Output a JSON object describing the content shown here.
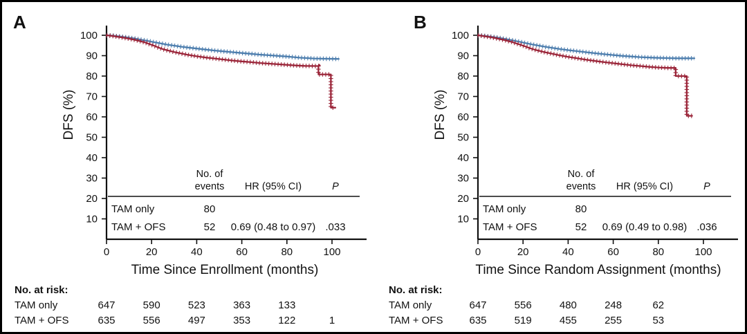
{
  "figure": {
    "background": "#ffffff",
    "border_color": "#000000"
  },
  "colors": {
    "tam_only": "#9A2438",
    "tam_ofs": "#4C7DAD",
    "axis": "#111111"
  },
  "chart_data": [
    {
      "type": "line",
      "panel": "A",
      "ylabel": "DFS (%)",
      "xlabel": "Time Since Enrollment (months)",
      "xlim": [
        0,
        113
      ],
      "ylim": [
        0,
        105
      ],
      "x_ticks": [
        0,
        20,
        40,
        60,
        80,
        100
      ],
      "y_ticks": [
        100,
        90,
        80,
        70,
        60,
        50,
        40,
        30,
        20,
        10
      ],
      "grid": false,
      "legend_position": "none",
      "series": [
        {
          "name": "TAM only",
          "color_key": "tam_only",
          "points": [
            [
              0,
              100
            ],
            [
              3,
              99.6
            ],
            [
              6,
              99.1
            ],
            [
              9,
              98.5
            ],
            [
              12,
              97.9
            ],
            [
              15,
              97.1
            ],
            [
              17,
              96.5
            ],
            [
              19,
              95.7
            ],
            [
              21,
              94.9
            ],
            [
              23,
              94.0
            ],
            [
              25,
              93.2
            ],
            [
              27,
              92.6
            ],
            [
              30,
              91.8
            ],
            [
              33,
              91.1
            ],
            [
              36,
              90.4
            ],
            [
              40,
              89.7
            ],
            [
              44,
              89.1
            ],
            [
              48,
              88.6
            ],
            [
              52,
              88.1
            ],
            [
              56,
              87.6
            ],
            [
              60,
              87.2
            ],
            [
              64,
              86.8
            ],
            [
              68,
              86.4
            ],
            [
              72,
              86.1
            ],
            [
              76,
              85.8
            ],
            [
              80,
              85.5
            ],
            [
              84,
              85.2
            ],
            [
              88,
              85.0
            ],
            [
              94,
              84.9
            ],
            [
              94,
              80.8
            ],
            [
              99.5,
              80.8
            ],
            [
              99.5,
              64.5
            ],
            [
              101.5,
              64.5
            ]
          ]
        },
        {
          "name": "TAM + OFS",
          "color_key": "tam_ofs",
          "points": [
            [
              0,
              100
            ],
            [
              3,
              99.8
            ],
            [
              6,
              99.4
            ],
            [
              9,
              99.0
            ],
            [
              12,
              98.5
            ],
            [
              15,
              97.9
            ],
            [
              18,
              97.3
            ],
            [
              21,
              96.6
            ],
            [
              24,
              96.0
            ],
            [
              27,
              95.4
            ],
            [
              30,
              94.9
            ],
            [
              33,
              94.4
            ],
            [
              36,
              94.0
            ],
            [
              40,
              93.5
            ],
            [
              44,
              93.0
            ],
            [
              48,
              92.5
            ],
            [
              52,
              92.1
            ],
            [
              56,
              91.7
            ],
            [
              60,
              91.3
            ],
            [
              64,
              90.9
            ],
            [
              68,
              90.5
            ],
            [
              72,
              90.2
            ],
            [
              76,
              89.9
            ],
            [
              80,
              89.6
            ],
            [
              83,
              89.3
            ],
            [
              86,
              89.0
            ],
            [
              89,
              88.8
            ],
            [
              92,
              88.6
            ],
            [
              96,
              88.5
            ],
            [
              103,
              88.4
            ]
          ]
        }
      ],
      "stats_table": {
        "header_events_line1": "No. of",
        "header_events_line2": "events",
        "header_hr": "HR (95% CI)",
        "header_p": "P",
        "rows": [
          {
            "label": "TAM only",
            "events": "80",
            "hr": "",
            "p": ""
          },
          {
            "label": "TAM + OFS",
            "events": "52",
            "hr": "0.69 (0.48 to 0.97)",
            "p": ".033"
          }
        ]
      },
      "at_risk": {
        "title": "No. at risk:",
        "rows": [
          {
            "label": "TAM only",
            "counts": [
              647,
              590,
              523,
              363,
              133
            ]
          },
          {
            "label": "TAM + OFS",
            "counts": [
              635,
              556,
              497,
              353,
              122,
              1
            ]
          }
        ]
      }
    },
    {
      "type": "line",
      "panel": "B",
      "ylabel": "DFS (%)",
      "xlabel": "Time Since Random Assignment (months)",
      "xlim": [
        0,
        113
      ],
      "ylim": [
        0,
        105
      ],
      "x_ticks": [
        0,
        20,
        40,
        60,
        80,
        100
      ],
      "y_ticks": [
        100,
        90,
        80,
        70,
        60,
        50,
        40,
        30,
        20,
        10
      ],
      "grid": false,
      "legend_position": "none",
      "series": [
        {
          "name": "TAM only",
          "color_key": "tam_only",
          "points": [
            [
              0,
              100
            ],
            [
              3,
              99.5
            ],
            [
              6,
              99.0
            ],
            [
              9,
              98.3
            ],
            [
              12,
              97.6
            ],
            [
              15,
              96.7
            ],
            [
              17,
              96.0
            ],
            [
              19,
              95.3
            ],
            [
              21,
              94.5
            ],
            [
              23,
              93.7
            ],
            [
              25,
              93.0
            ],
            [
              27,
              92.4
            ],
            [
              30,
              91.6
            ],
            [
              33,
              90.9
            ],
            [
              36,
              90.2
            ],
            [
              40,
              89.4
            ],
            [
              44,
              88.7
            ],
            [
              48,
              88.0
            ],
            [
              52,
              87.4
            ],
            [
              56,
              86.8
            ],
            [
              60,
              86.3
            ],
            [
              64,
              85.8
            ],
            [
              68,
              85.3
            ],
            [
              72,
              84.9
            ],
            [
              76,
              84.5
            ],
            [
              80,
              84.2
            ],
            [
              84,
              84.0
            ],
            [
              87.7,
              84.0
            ],
            [
              87.7,
              80.0
            ],
            [
              92.6,
              80.0
            ],
            [
              92.6,
              60.5
            ],
            [
              95,
              60.5
            ]
          ]
        },
        {
          "name": "TAM + OFS",
          "color_key": "tam_ofs",
          "points": [
            [
              0,
              100
            ],
            [
              3,
              99.7
            ],
            [
              6,
              99.3
            ],
            [
              9,
              98.8
            ],
            [
              12,
              98.2
            ],
            [
              15,
              97.6
            ],
            [
              18,
              96.9
            ],
            [
              21,
              96.2
            ],
            [
              24,
              95.5
            ],
            [
              27,
              94.9
            ],
            [
              30,
              94.3
            ],
            [
              33,
              93.8
            ],
            [
              36,
              93.3
            ],
            [
              40,
              92.7
            ],
            [
              44,
              92.2
            ],
            [
              48,
              91.7
            ],
            [
              52,
              91.2
            ],
            [
              56,
              90.7
            ],
            [
              60,
              90.3
            ],
            [
              64,
              89.9
            ],
            [
              68,
              89.6
            ],
            [
              72,
              89.3
            ],
            [
              76,
              89.1
            ],
            [
              80,
              88.9
            ],
            [
              84,
              88.8
            ],
            [
              88,
              88.7
            ],
            [
              96,
              88.7
            ]
          ]
        }
      ],
      "stats_table": {
        "header_events_line1": "No. of",
        "header_events_line2": "events",
        "header_hr": "HR (95% CI)",
        "header_p": "P",
        "rows": [
          {
            "label": "TAM only",
            "events": "80",
            "hr": "",
            "p": ""
          },
          {
            "label": "TAM + OFS",
            "events": "52",
            "hr": "0.69 (0.49 to 0.98)",
            "p": ".036"
          }
        ]
      },
      "at_risk": {
        "title": "No. at risk:",
        "rows": [
          {
            "label": "TAM only",
            "counts": [
              647,
              556,
              480,
              248,
              62
            ]
          },
          {
            "label": "TAM + OFS",
            "counts": [
              635,
              519,
              455,
              255,
              53
            ]
          }
        ]
      }
    }
  ]
}
